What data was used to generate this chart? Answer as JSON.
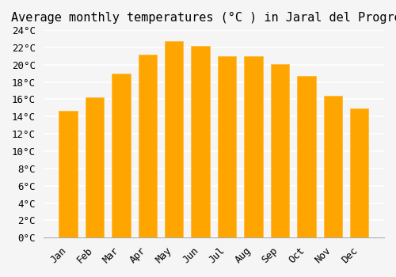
{
  "title": "Average monthly temperatures (°C ) in Jaral del Progreso",
  "months": [
    "Jan",
    "Feb",
    "Mar",
    "Apr",
    "May",
    "Jun",
    "Jul",
    "Aug",
    "Sep",
    "Oct",
    "Nov",
    "Dec"
  ],
  "values": [
    14.7,
    16.2,
    19.0,
    21.2,
    22.7,
    22.2,
    21.0,
    21.0,
    20.1,
    18.7,
    16.4,
    14.9
  ],
  "bar_color_face": "#FFA500",
  "bar_color_edge": "#FFB733",
  "ylim": [
    0,
    24
  ],
  "yticks": [
    0,
    2,
    4,
    6,
    8,
    10,
    12,
    14,
    16,
    18,
    20,
    22,
    24
  ],
  "background_color": "#F5F5F5",
  "grid_color": "#FFFFFF",
  "title_fontsize": 11,
  "tick_fontsize": 9,
  "font_family": "monospace"
}
